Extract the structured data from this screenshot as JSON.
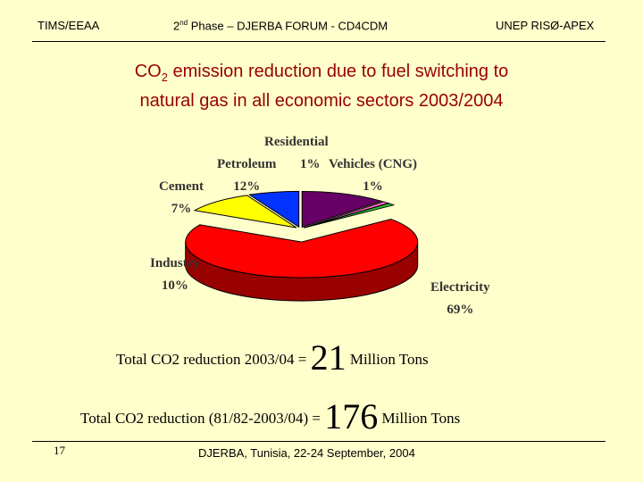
{
  "header": {
    "left": "TIMS/EEAA",
    "center_sup": "nd",
    "center_pre": "2",
    "center_rest": " Phase – DJERBA FORUM - CD4CDM",
    "right": "UNEP RISØ-APEX"
  },
  "title": {
    "line1_pre": "CO",
    "line1_sub": "2",
    "line1_post": " emission reduction due to fuel switching to",
    "line2": "natural gas in all economic sectors  2003/2004"
  },
  "chart_data": {
    "type": "pie",
    "slices": [
      {
        "name": "Electricity",
        "pct_label": "69%",
        "value": 69,
        "color": "#ff0000"
      },
      {
        "name": "Industry",
        "pct_label": "10%",
        "value": 10,
        "color": "#ffff00"
      },
      {
        "name": "Cement",
        "pct_label": "7%",
        "value": 7,
        "color": "#0033ff"
      },
      {
        "name": "Petroleum",
        "pct_label": "12%",
        "value": 12,
        "color": "#660066"
      },
      {
        "name": "Residential",
        "pct_label": "1%",
        "value": 1,
        "color": "#ff66cc"
      },
      {
        "name": "Vehicles (CNG)",
        "pct_label": "1%",
        "value": 1,
        "color": "#33cc33"
      }
    ],
    "style": "3d-exploded"
  },
  "totals": {
    "line1_text": "Total CO2 reduction 2003/04 = ",
    "line1_value": "21",
    "line1_unit": " Million Tons",
    "line2_text": "Total CO2 reduction (81/82-2003/04) = ",
    "line2_value": "176",
    "line2_unit": " Million Tons"
  },
  "footer": {
    "page_number": "17",
    "text": "DJERBA, Tunisia,  22-24 September, 2004"
  }
}
